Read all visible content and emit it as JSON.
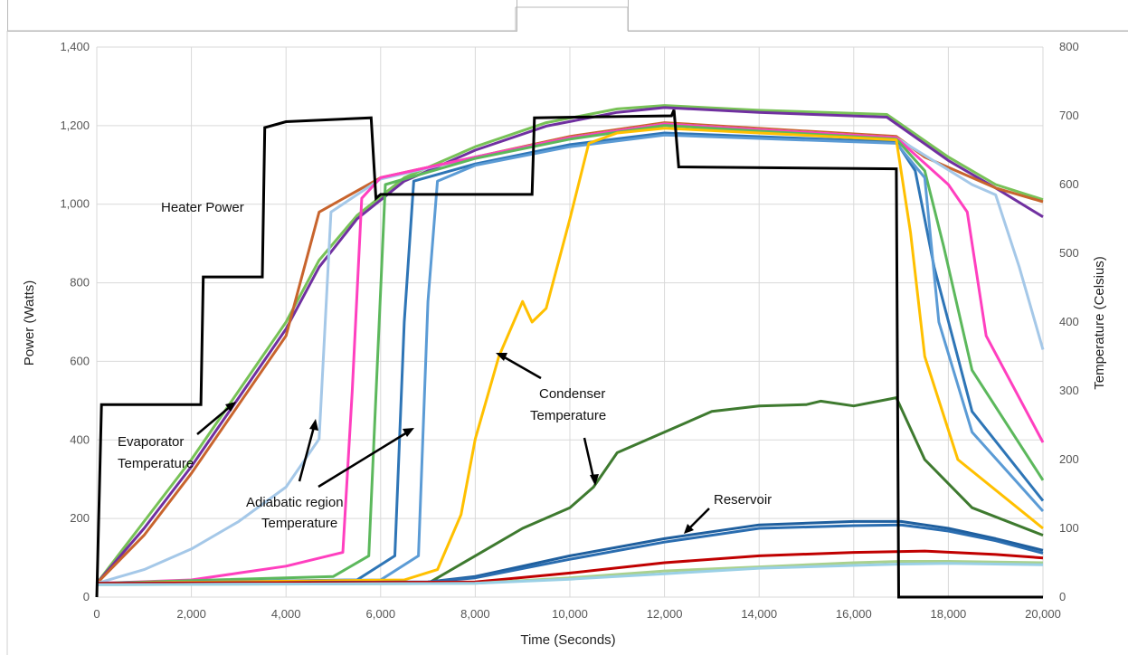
{
  "chart_data": {
    "type": "line",
    "title": "",
    "xlabel": "Time (Seconds)",
    "ylabel_left": "Power (Watts)",
    "ylabel_right": "Temperature (Celsius)",
    "xlim": [
      0,
      20000
    ],
    "ylim_left": [
      0,
      1400
    ],
    "ylim_right": [
      0,
      800
    ],
    "grid": true,
    "legend": "none",
    "x_ticks": [
      "0",
      "2,000",
      "4,000",
      "6,000",
      "8,000",
      "10,000",
      "12,000",
      "14,000",
      "16,000",
      "18,000",
      "20,000"
    ],
    "y_ticks_left": [
      "0",
      "200",
      "400",
      "600",
      "800",
      "1,000",
      "1,200",
      "1,400"
    ],
    "y_ticks_right": [
      "0",
      "100",
      "200",
      "300",
      "400",
      "500",
      "600",
      "700",
      "800"
    ],
    "annotations": [
      {
        "text": "Heater Power"
      },
      {
        "text": "Evaporator"
      },
      {
        "text": "Temperature"
      },
      {
        "text": "Adiabatic region"
      },
      {
        "text": "Temperature"
      },
      {
        "text": "Condenser"
      },
      {
        "text": "Temperature"
      },
      {
        "text": "Reservoir"
      }
    ],
    "heater_power": {
      "color": "#000000",
      "axis": "left",
      "points": [
        [
          0,
          0
        ],
        [
          100,
          490
        ],
        [
          2200,
          490
        ],
        [
          2250,
          815
        ],
        [
          3500,
          815
        ],
        [
          3550,
          1195
        ],
        [
          4000,
          1210
        ],
        [
          5800,
          1220
        ],
        [
          5900,
          1015
        ],
        [
          6000,
          1025
        ],
        [
          9200,
          1025
        ],
        [
          9250,
          1220
        ],
        [
          12150,
          1225
        ],
        [
          12200,
          1240
        ],
        [
          12300,
          1095
        ],
        [
          16900,
          1090
        ],
        [
          16950,
          0
        ],
        [
          20000,
          0
        ]
      ]
    },
    "temperature_series": [
      {
        "color": "#78c257",
        "axis": "right",
        "points": [
          [
            0,
            20
          ],
          [
            1000,
            110
          ],
          [
            2000,
            200
          ],
          [
            3000,
            300
          ],
          [
            4000,
            400
          ],
          [
            4700,
            490
          ],
          [
            5500,
            555
          ],
          [
            6500,
            610
          ],
          [
            8000,
            655
          ],
          [
            9500,
            690
          ],
          [
            11000,
            710
          ],
          [
            12000,
            715
          ],
          [
            14000,
            708
          ],
          [
            16700,
            702
          ],
          [
            18000,
            640
          ],
          [
            19000,
            600
          ],
          [
            20000,
            578
          ]
        ]
      },
      {
        "color": "#7030a0",
        "axis": "right",
        "points": [
          [
            0,
            20
          ],
          [
            1000,
            100
          ],
          [
            2000,
            190
          ],
          [
            3000,
            290
          ],
          [
            4000,
            390
          ],
          [
            4700,
            480
          ],
          [
            5500,
            550
          ],
          [
            6500,
            605
          ],
          [
            8000,
            650
          ],
          [
            9500,
            685
          ],
          [
            11000,
            705
          ],
          [
            12000,
            712
          ],
          [
            14000,
            705
          ],
          [
            16700,
            698
          ],
          [
            18000,
            635
          ],
          [
            19000,
            595
          ],
          [
            20000,
            553
          ]
        ]
      },
      {
        "color": "#c8642d",
        "axis": "right",
        "points": [
          [
            0,
            20
          ],
          [
            1000,
            90
          ],
          [
            2000,
            180
          ],
          [
            3000,
            280
          ],
          [
            4000,
            380
          ],
          [
            4700,
            560
          ],
          [
            6000,
            610
          ],
          [
            8000,
            640
          ],
          [
            10000,
            670
          ],
          [
            12000,
            690
          ],
          [
            16900,
            670
          ],
          [
            17500,
            640
          ],
          [
            19000,
            595
          ],
          [
            20000,
            575
          ]
        ]
      },
      {
        "color": "#a5c8e8",
        "axis": "right",
        "points": [
          [
            0,
            20
          ],
          [
            1000,
            40
          ],
          [
            2000,
            70
          ],
          [
            3000,
            110
          ],
          [
            4000,
            160
          ],
          [
            4700,
            230
          ],
          [
            4950,
            560
          ],
          [
            6000,
            608
          ],
          [
            8000,
            640
          ],
          [
            10000,
            668
          ],
          [
            12000,
            688
          ],
          [
            16900,
            668
          ],
          [
            18500,
            600
          ],
          [
            19000,
            585
          ],
          [
            19500,
            480
          ],
          [
            20000,
            360
          ]
        ]
      },
      {
        "color": "#ff3fbf",
        "axis": "right",
        "points": [
          [
            0,
            20
          ],
          [
            2000,
            25
          ],
          [
            3000,
            35
          ],
          [
            4000,
            45
          ],
          [
            5200,
            65
          ],
          [
            5400,
            300
          ],
          [
            5600,
            580
          ],
          [
            6000,
            610
          ],
          [
            8000,
            640
          ],
          [
            10000,
            668
          ],
          [
            12000,
            688
          ],
          [
            16900,
            668
          ],
          [
            18000,
            600
          ],
          [
            18400,
            560
          ],
          [
            18800,
            380
          ],
          [
            20000,
            225
          ]
        ]
      },
      {
        "color": "#5cb85c",
        "axis": "right",
        "points": [
          [
            0,
            20
          ],
          [
            5000,
            30
          ],
          [
            5750,
            60
          ],
          [
            6100,
            600
          ],
          [
            8000,
            638
          ],
          [
            10000,
            666
          ],
          [
            12000,
            686
          ],
          [
            16900,
            666
          ],
          [
            17500,
            620
          ],
          [
            17900,
            510
          ],
          [
            18500,
            330
          ],
          [
            20000,
            170
          ]
        ]
      },
      {
        "color": "#2e75b6",
        "axis": "right",
        "points": [
          [
            0,
            20
          ],
          [
            5500,
            25
          ],
          [
            6300,
            60
          ],
          [
            6500,
            400
          ],
          [
            6700,
            605
          ],
          [
            8000,
            630
          ],
          [
            10000,
            658
          ],
          [
            12000,
            675
          ],
          [
            16900,
            662
          ],
          [
            17300,
            620
          ],
          [
            17700,
            480
          ],
          [
            18500,
            270
          ],
          [
            20000,
            140
          ]
        ]
      },
      {
        "color": "#5b9bd5",
        "axis": "right",
        "points": [
          [
            0,
            20
          ],
          [
            6000,
            25
          ],
          [
            6800,
            60
          ],
          [
            7000,
            430
          ],
          [
            7200,
            605
          ],
          [
            8000,
            628
          ],
          [
            10000,
            655
          ],
          [
            12000,
            672
          ],
          [
            16900,
            660
          ],
          [
            17500,
            610
          ],
          [
            17800,
            400
          ],
          [
            18500,
            240
          ],
          [
            20000,
            125
          ]
        ]
      },
      {
        "color": "#ffc000",
        "axis": "right",
        "points": [
          [
            0,
            20
          ],
          [
            6500,
            25
          ],
          [
            7200,
            40
          ],
          [
            7700,
            120
          ],
          [
            8000,
            230
          ],
          [
            8500,
            350
          ],
          [
            9000,
            430
          ],
          [
            9200,
            400
          ],
          [
            9500,
            420
          ],
          [
            10000,
            550
          ],
          [
            10400,
            660
          ],
          [
            11000,
            675
          ],
          [
            12000,
            682
          ],
          [
            16900,
            665
          ],
          [
            17200,
            530
          ],
          [
            17500,
            350
          ],
          [
            18200,
            200
          ],
          [
            20000,
            100
          ]
        ]
      },
      {
        "color": "#3e7a2f",
        "axis": "right",
        "points": [
          [
            0,
            20
          ],
          [
            7000,
            20
          ],
          [
            8000,
            60
          ],
          [
            9000,
            100
          ],
          [
            10000,
            130
          ],
          [
            10500,
            160
          ],
          [
            11000,
            210
          ],
          [
            12000,
            240
          ],
          [
            13000,
            270
          ],
          [
            14000,
            278
          ],
          [
            15000,
            280
          ],
          [
            15300,
            285
          ],
          [
            16000,
            278
          ],
          [
            16900,
            290
          ],
          [
            17500,
            200
          ],
          [
            18500,
            130
          ],
          [
            20000,
            90
          ]
        ]
      },
      {
        "color": "#1f5f9e",
        "axis": "right",
        "points": [
          [
            0,
            20
          ],
          [
            7000,
            22
          ],
          [
            8000,
            30
          ],
          [
            10000,
            60
          ],
          [
            12000,
            85
          ],
          [
            14000,
            105
          ],
          [
            16000,
            110
          ],
          [
            17000,
            110
          ],
          [
            18000,
            100
          ],
          [
            19000,
            85
          ],
          [
            20000,
            68
          ]
        ]
      },
      {
        "color": "#2a6db0",
        "axis": "right",
        "points": [
          [
            0,
            20
          ],
          [
            7000,
            22
          ],
          [
            8000,
            28
          ],
          [
            10000,
            55
          ],
          [
            12000,
            80
          ],
          [
            14000,
            100
          ],
          [
            16000,
            104
          ],
          [
            17000,
            105
          ],
          [
            18000,
            96
          ],
          [
            19000,
            82
          ],
          [
            20000,
            64
          ]
        ]
      },
      {
        "color": "#c00000",
        "axis": "right",
        "points": [
          [
            0,
            20
          ],
          [
            8000,
            22
          ],
          [
            10000,
            35
          ],
          [
            12000,
            50
          ],
          [
            14000,
            60
          ],
          [
            16000,
            65
          ],
          [
            17500,
            67
          ],
          [
            19000,
            62
          ],
          [
            20000,
            57
          ]
        ]
      },
      {
        "color": "#a9d18e",
        "axis": "right",
        "points": [
          [
            0,
            18
          ],
          [
            8000,
            20
          ],
          [
            10000,
            28
          ],
          [
            12000,
            38
          ],
          [
            14000,
            44
          ],
          [
            16000,
            50
          ],
          [
            17000,
            52
          ],
          [
            18000,
            52
          ],
          [
            20000,
            50
          ]
        ]
      },
      {
        "color": "#9ad0e6",
        "axis": "right",
        "points": [
          [
            0,
            18
          ],
          [
            8000,
            20
          ],
          [
            10000,
            26
          ],
          [
            12000,
            34
          ],
          [
            14000,
            42
          ],
          [
            16000,
            46
          ],
          [
            17000,
            48
          ],
          [
            18000,
            49
          ],
          [
            20000,
            47
          ]
        ]
      }
    ]
  }
}
